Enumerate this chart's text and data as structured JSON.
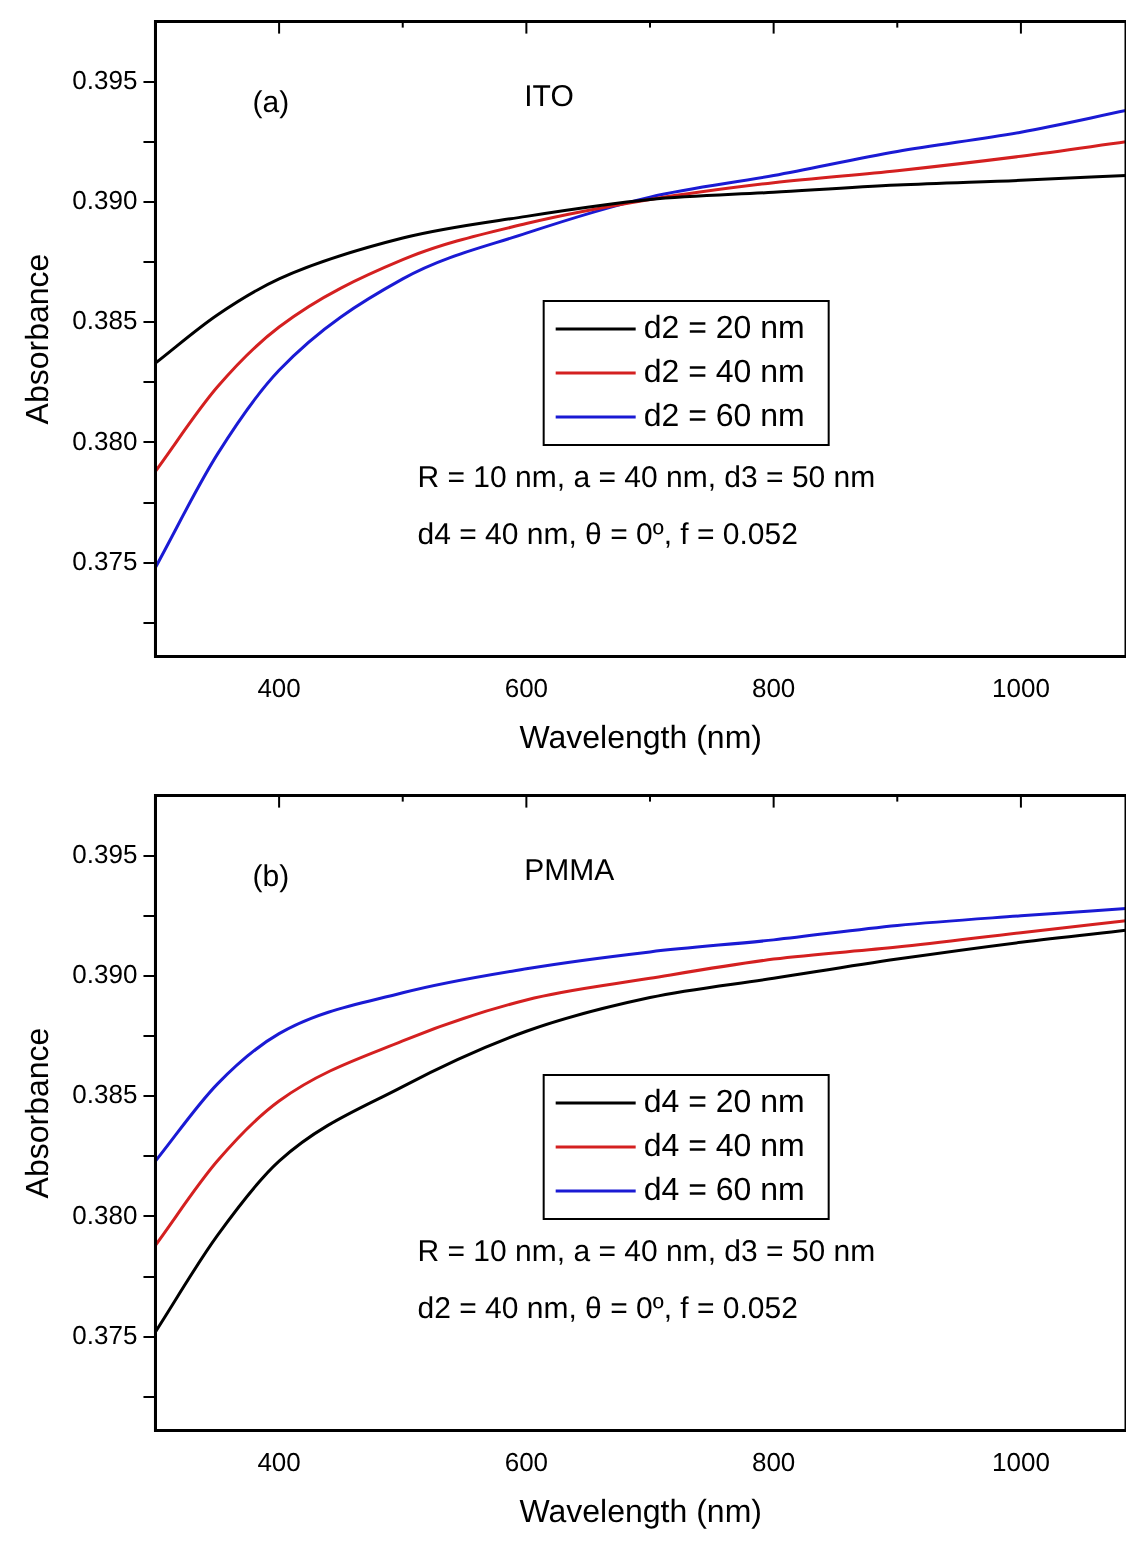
{
  "chart_data": [
    {
      "type": "line",
      "xlabel": "Wavelength (nm)",
      "ylabel": "Absorbance",
      "annotations": [
        "(a)",
        "ITO",
        "R = 10 nm, a = 40 nm, d3 = 50 nm",
        "d4 = 40 nm, θ = 0º, f = 0.052"
      ],
      "x": [
        300,
        350,
        400,
        500,
        600,
        700,
        800,
        900,
        1000,
        1085
      ],
      "series": [
        {
          "name": "d2 = 20 nm",
          "color": "#000000",
          "values": [
            0.3833,
            0.3853,
            0.3868,
            0.3885,
            0.3894,
            0.3901,
            0.3904,
            0.3907,
            0.3909,
            0.3911
          ]
        },
        {
          "name": "d2 = 40 nm",
          "color": "#d42020",
          "values": [
            0.3788,
            0.3823,
            0.3848,
            0.3876,
            0.3891,
            0.3901,
            0.3908,
            0.3913,
            0.3919,
            0.3925
          ]
        },
        {
          "name": "d2 = 60 nm",
          "color": "#1a1ad4",
          "values": [
            0.3748,
            0.3795,
            0.383,
            0.3868,
            0.3887,
            0.3902,
            0.3911,
            0.3921,
            0.3929,
            0.3938
          ]
        }
      ],
      "xlim": [
        300,
        1085
      ],
      "xticks": [
        {
          "value": 300,
          "label": null
        },
        400,
        {
          "value": 500,
          "label": null
        },
        600,
        {
          "value": 700,
          "label": null
        },
        800,
        {
          "value": 900,
          "label": null
        },
        1000
      ],
      "ylim": [
        0.3711,
        0.3975
      ],
      "yticks": [
        {
          "value": 0.3725,
          "label": null
        },
        0.375,
        {
          "value": 0.3775,
          "label": null
        },
        {
          "value": 0.38,
          "label": "0.380"
        },
        {
          "value": 0.3825,
          "label": null
        },
        0.385,
        {
          "value": 0.3875,
          "label": null
        },
        {
          "value": 0.39,
          "label": "0.390"
        },
        {
          "value": 0.3925,
          "label": null
        },
        0.395
      ],
      "legend": "center",
      "grid": false,
      "marker": "none",
      "line_style": "solid"
    },
    {
      "type": "line",
      "xlabel": "Wavelength (nm)",
      "ylabel": "Absorbance",
      "annotations": [
        "(b)",
        "PMMA",
        "R = 10 nm, a = 40 nm, d3 = 50 nm",
        "d2 = 40 nm, θ = 0º, f = 0.052"
      ],
      "x": [
        300,
        350,
        400,
        500,
        600,
        700,
        800,
        900,
        1000,
        1085
      ],
      "series": [
        {
          "name": "d4 = 20 nm",
          "color": "#000000",
          "values": [
            0.3752,
            0.3792,
            0.3823,
            0.3854,
            0.3877,
            0.3891,
            0.3899,
            0.3907,
            0.3914,
            0.3919
          ]
        },
        {
          "name": "d4 = 40 nm",
          "color": "#d42020",
          "values": [
            0.3788,
            0.3823,
            0.3848,
            0.3873,
            0.389,
            0.3899,
            0.3907,
            0.3912,
            0.3918,
            0.3923
          ]
        },
        {
          "name": "d4 = 60 nm",
          "color": "#1a1ad4",
          "values": [
            0.3823,
            0.3855,
            0.3876,
            0.3893,
            0.3903,
            0.391,
            0.3915,
            0.3921,
            0.3925,
            0.3928
          ]
        }
      ],
      "xlim": [
        300,
        1085
      ],
      "xticks": [
        {
          "value": 300,
          "label": null
        },
        400,
        {
          "value": 500,
          "label": null
        },
        600,
        {
          "value": 700,
          "label": null
        },
        800,
        {
          "value": 900,
          "label": null
        },
        1000
      ],
      "ylim": [
        0.3711,
        0.3975
      ],
      "yticks": [
        {
          "value": 0.3725,
          "label": null
        },
        0.375,
        {
          "value": 0.3775,
          "label": null
        },
        {
          "value": 0.38,
          "label": "0.380"
        },
        {
          "value": 0.3825,
          "label": null
        },
        0.385,
        {
          "value": 0.3875,
          "label": null
        },
        {
          "value": 0.39,
          "label": "0.390"
        },
        {
          "value": 0.3925,
          "label": null
        },
        0.395
      ],
      "legend": "center",
      "grid": false,
      "marker": "none",
      "line_style": "solid"
    }
  ]
}
